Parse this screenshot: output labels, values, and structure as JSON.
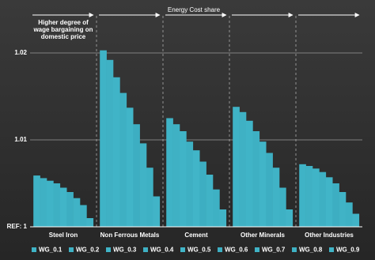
{
  "chart_data": {
    "type": "bar",
    "title": "Energy Cost share",
    "annotation_lines": [
      "Higher degree of",
      "wage bargaining on",
      "domestic price"
    ],
    "categories": [
      "Steel Iron",
      "Non Ferrous Metals",
      "Cement",
      "Other Minerals",
      "Other Industries"
    ],
    "series": [
      {
        "name": "WG_0.1",
        "color": "#3fb3c6",
        "values": [
          1.0059,
          1.0203,
          1.0125,
          1.0138,
          1.0072
        ]
      },
      {
        "name": "WG_0.2",
        "color": "#3fb1c4",
        "values": [
          1.0056,
          1.0192,
          1.0118,
          1.0132,
          1.007
        ]
      },
      {
        "name": "WG_0.3",
        "color": "#40b4c7",
        "values": [
          1.0053,
          1.0172,
          1.011,
          1.0122,
          1.0067
        ]
      },
      {
        "name": "WG_0.4",
        "color": "#3eb0c3",
        "values": [
          1.005,
          1.0154,
          1.0098,
          1.011,
          1.0063
        ]
      },
      {
        "name": "WG_0.5",
        "color": "#41b5c8",
        "values": [
          1.0045,
          1.0137,
          1.0088,
          1.0098,
          1.0057
        ]
      },
      {
        "name": "WG_0.6",
        "color": "#3daec2",
        "values": [
          1.004,
          1.0118,
          1.0075,
          1.0085,
          1.005
        ]
      },
      {
        "name": "WG_0.7",
        "color": "#40b3c6",
        "values": [
          1.0033,
          1.0096,
          1.006,
          1.0068,
          1.004
        ]
      },
      {
        "name": "WG_0.8",
        "color": "#3eb1c4",
        "values": [
          1.0025,
          1.0068,
          1.0043,
          1.0045,
          1.0028
        ]
      },
      {
        "name": "WG_0.9",
        "color": "#41b4c7",
        "values": [
          1.001,
          1.0035,
          1.002,
          1.002,
          1.0015
        ]
      }
    ],
    "ylim": [
      1,
      1.025
    ],
    "yticks": [
      {
        "value": 1,
        "label": "REF: 1"
      },
      1.01,
      1.02
    ],
    "grid": true,
    "legend": "bottom"
  }
}
